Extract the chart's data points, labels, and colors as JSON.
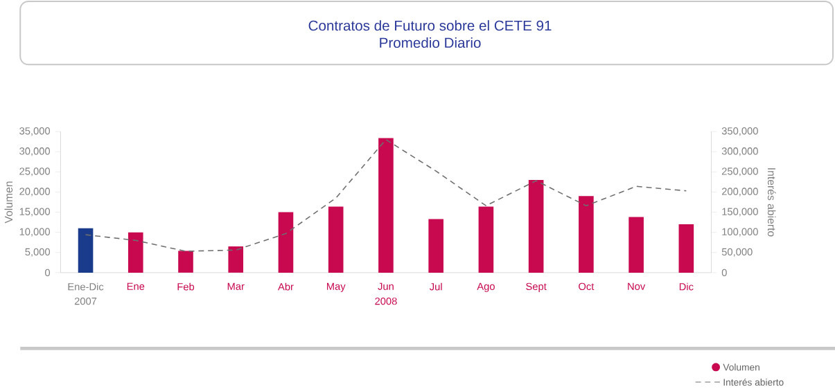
{
  "chart_data": {
    "type": "bar",
    "title": "Contratos de Futuro sobre el CETE 91",
    "subtitle": "Promedio Diario",
    "ylabel": "Volumen",
    "y2label": "Interés abierto",
    "categories": [
      "Ene-Dic",
      "Ene",
      "Feb",
      "Mar",
      "Abr",
      "May",
      "Jun",
      "Jul",
      "Ago",
      "Sept",
      "Oct",
      "Nov",
      "Dic"
    ],
    "series": [
      {
        "name": "Volumen",
        "color": "#c8094f",
        "colors": [
          "#1a3a8c",
          "#c8094f",
          "#c8094f",
          "#c8094f",
          "#c8094f",
          "#c8094f",
          "#c8094f",
          "#c8094f",
          "#c8094f",
          "#c8094f",
          "#c8094f",
          "#c8094f",
          "#c8094f"
        ],
        "values": [
          11000,
          10000,
          5400,
          6500,
          15000,
          16400,
          33400,
          13300,
          16400,
          23000,
          19000,
          13800,
          12000
        ]
      },
      {
        "name": "Interés abierto",
        "type": "line",
        "axis": "y2",
        "color": "#6e6e6e",
        "line_style": "dashed",
        "marker": "none",
        "values": [
          94000,
          80000,
          53000,
          56000,
          97000,
          185000,
          330000,
          252000,
          166000,
          228000,
          166000,
          214000,
          203000
        ]
      }
    ],
    "ylim": [
      0,
      35000
    ],
    "yticks": [
      0,
      {
        "value": 5000,
        "label": "5,000"
      },
      {
        "value": 10000,
        "label": "10,000"
      },
      {
        "value": 15000,
        "label": "15,000"
      },
      {
        "value": 20000,
        "label": "20,000"
      },
      {
        "value": 25000,
        "label": "25,000"
      },
      {
        "value": 30000,
        "label": "30,000"
      },
      {
        "value": 35000,
        "label": "35,000"
      }
    ],
    "y2lim": [
      0,
      350000
    ],
    "y2ticks": [
      0,
      {
        "value": 50000,
        "label": "50,000"
      },
      {
        "value": 100000,
        "label": "100,000"
      },
      {
        "value": 150000,
        "label": "150,000"
      },
      {
        "value": 200000,
        "label": "200,000"
      },
      {
        "value": 250000,
        "label": "250,000"
      },
      {
        "value": 300000,
        "label": "300,000"
      },
      {
        "value": 350000,
        "label": "350,000"
      }
    ],
    "annotations": [
      "2007",
      "2008"
    ],
    "legend": "bottom right",
    "grid": false
  }
}
